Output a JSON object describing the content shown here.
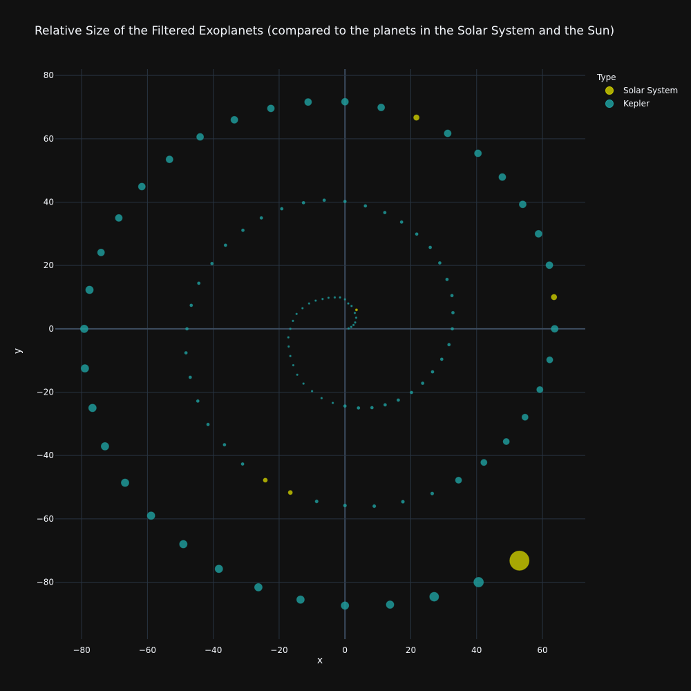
{
  "chart_data": {
    "type": "scatter",
    "title": "Relative Size of the Filtered Exoplanets (compared to the planets in the Solar System and the Sun)",
    "xlabel": "x",
    "ylabel": "y",
    "xlim": [
      -88,
      73
    ],
    "ylim": [
      -98,
      82
    ],
    "xticks": [
      -80,
      -60,
      -40,
      -20,
      0,
      20,
      40,
      60
    ],
    "yticks": [
      -80,
      -60,
      -40,
      -20,
      0,
      20,
      40,
      60,
      80
    ],
    "tick_labels_x": [
      "−80",
      "−60",
      "−40",
      "−20",
      "0",
      "20",
      "40",
      "60"
    ],
    "tick_labels_y": [
      "−80",
      "−60",
      "−40",
      "−20",
      "0",
      "20",
      "40",
      "60",
      "80"
    ],
    "grid": true,
    "legend": {
      "title": "Type",
      "placement": "top-right",
      "entries": [
        "Solar System",
        "Kepler"
      ]
    },
    "series": [
      {
        "name": "Solar System",
        "color": "#c8c800",
        "points": [
          {
            "x": 21.7,
            "y": 66.7,
            "size": 4
          },
          {
            "x": 63.5,
            "y": 10.0,
            "size": 4
          },
          {
            "x": -24.2,
            "y": -47.8,
            "size": 3
          },
          {
            "x": -16.6,
            "y": -51.7,
            "size": 3
          },
          {
            "x": 3.5,
            "y": 6.0,
            "size": 1.5
          },
          {
            "x": 53.0,
            "y": -73.2,
            "size": 14
          }
        ]
      },
      {
        "name": "Kepler",
        "color": "#1f9e9e",
        "points": [
          {
            "x": 0,
            "y": 71.7,
            "size": 5
          },
          {
            "x": 11.0,
            "y": 69.9,
            "size": 5
          },
          {
            "x": 31.2,
            "y": 61.7,
            "size": 5
          },
          {
            "x": 40.4,
            "y": 55.4,
            "size": 5
          },
          {
            "x": 47.8,
            "y": 47.9,
            "size": 5
          },
          {
            "x": 54.0,
            "y": 39.3,
            "size": 5
          },
          {
            "x": 58.8,
            "y": 30.0,
            "size": 5
          },
          {
            "x": 62.1,
            "y": 20.1,
            "size": 5
          },
          {
            "x": 63.7,
            "y": 0,
            "size": 5
          },
          {
            "x": 62.2,
            "y": -9.8,
            "size": 4.5
          },
          {
            "x": 59.2,
            "y": -19.2,
            "size": 4.5
          },
          {
            "x": 54.7,
            "y": -27.9,
            "size": 4.5
          },
          {
            "x": 49.0,
            "y": -35.6,
            "size": 4.5
          },
          {
            "x": 42.2,
            "y": -42.2,
            "size": 4.5
          },
          {
            "x": 34.5,
            "y": -47.8,
            "size": 4.5
          },
          {
            "x": -11.2,
            "y": 71.6,
            "size": 5
          },
          {
            "x": -22.5,
            "y": 69.6,
            "size": 5
          },
          {
            "x": -33.6,
            "y": 66.0,
            "size": 5
          },
          {
            "x": -44.0,
            "y": 60.6,
            "size": 5
          },
          {
            "x": -53.3,
            "y": 53.5,
            "size": 5
          },
          {
            "x": -61.7,
            "y": 44.9,
            "size": 5
          },
          {
            "x": -68.7,
            "y": 35.0,
            "size": 5
          },
          {
            "x": -74.1,
            "y": 24.1,
            "size": 5
          },
          {
            "x": -77.6,
            "y": 12.3,
            "size": 5.5
          },
          {
            "x": -79.2,
            "y": 0,
            "size": 5.5
          },
          {
            "x": -79.0,
            "y": -12.5,
            "size": 5.5
          },
          {
            "x": -76.7,
            "y": -25.0,
            "size": 5.5
          },
          {
            "x": -72.9,
            "y": -37.1,
            "size": 5.5
          },
          {
            "x": -66.8,
            "y": -48.6,
            "size": 5.5
          },
          {
            "x": -58.9,
            "y": -59.0,
            "size": 5.5
          },
          {
            "x": -49.1,
            "y": -68.0,
            "size": 5.5
          },
          {
            "x": -38.3,
            "y": -75.8,
            "size": 5.5
          },
          {
            "x": -26.3,
            "y": -81.6,
            "size": 5.5
          },
          {
            "x": -13.5,
            "y": -85.5,
            "size": 5.5
          },
          {
            "x": 0,
            "y": -87.4,
            "size": 5.5
          },
          {
            "x": 13.7,
            "y": -87.1,
            "size": 5.5
          },
          {
            "x": 27.1,
            "y": -84.6,
            "size": 6.5
          },
          {
            "x": 40.6,
            "y": -80.0,
            "size": 7
          },
          {
            "x": 0,
            "y": 40.2,
            "size": 2
          },
          {
            "x": 6.2,
            "y": 38.8,
            "size": 2
          },
          {
            "x": 12.1,
            "y": 36.7,
            "size": 2
          },
          {
            "x": 17.2,
            "y": 33.7,
            "size": 2
          },
          {
            "x": 21.8,
            "y": 29.9,
            "size": 2
          },
          {
            "x": 25.9,
            "y": 25.7,
            "size": 2
          },
          {
            "x": 28.8,
            "y": 20.8,
            "size": 2
          },
          {
            "x": 31.0,
            "y": 15.6,
            "size": 2
          },
          {
            "x": 32.5,
            "y": 10.5,
            "size": 2
          },
          {
            "x": 32.8,
            "y": 5.1,
            "size": 2
          },
          {
            "x": 32.6,
            "y": 0,
            "size": 2
          },
          {
            "x": 31.6,
            "y": -5.0,
            "size": 2
          },
          {
            "x": 29.4,
            "y": -9.6,
            "size": 2
          },
          {
            "x": 26.6,
            "y": -13.6,
            "size": 2
          },
          {
            "x": 23.6,
            "y": -17.2,
            "size": 2
          },
          {
            "x": 20.2,
            "y": -20.1,
            "size": 2
          },
          {
            "x": 16.2,
            "y": -22.5,
            "size": 2
          },
          {
            "x": 12.2,
            "y": -24.0,
            "size": 2
          },
          {
            "x": 8.2,
            "y": -24.9,
            "size": 2
          },
          {
            "x": 4.1,
            "y": -25.0,
            "size": 2
          },
          {
            "x": 0,
            "y": -24.4,
            "size": 2
          },
          {
            "x": -6.3,
            "y": 40.6,
            "size": 2
          },
          {
            "x": -12.6,
            "y": 39.8,
            "size": 2
          },
          {
            "x": -19.2,
            "y": 37.9,
            "size": 2
          },
          {
            "x": -25.4,
            "y": 35.0,
            "size": 2
          },
          {
            "x": -31.0,
            "y": 31.1,
            "size": 2
          },
          {
            "x": -36.3,
            "y": 26.4,
            "size": 2
          },
          {
            "x": -40.4,
            "y": 20.6,
            "size": 2
          },
          {
            "x": -44.4,
            "y": 14.4,
            "size": 2
          },
          {
            "x": -46.7,
            "y": 7.4,
            "size": 2
          },
          {
            "x": -48.0,
            "y": 0,
            "size": 2
          },
          {
            "x": -48.3,
            "y": -7.6,
            "size": 2
          },
          {
            "x": -47.0,
            "y": -15.3,
            "size": 2
          },
          {
            "x": -44.7,
            "y": -22.8,
            "size": 2
          },
          {
            "x": -41.6,
            "y": -30.2,
            "size": 2
          },
          {
            "x": -36.6,
            "y": -36.6,
            "size": 2
          },
          {
            "x": -31.1,
            "y": -42.7,
            "size": 2
          },
          {
            "x": -8.6,
            "y": -54.5,
            "size": 2.2
          },
          {
            "x": 0,
            "y": -55.8,
            "size": 2.2
          },
          {
            "x": 8.9,
            "y": -56.0,
            "size": 2.2
          },
          {
            "x": 17.6,
            "y": -54.6,
            "size": 2.2
          },
          {
            "x": 26.5,
            "y": -52.0,
            "size": 2.2
          },
          {
            "x": 0,
            "y": 9.3,
            "size": 1.2
          },
          {
            "x": 1.0,
            "y": 8.0,
            "size": 1.2
          },
          {
            "x": 2.0,
            "y": 7.2,
            "size": 1.2
          },
          {
            "x": 3.0,
            "y": 5.0,
            "size": 1.2
          },
          {
            "x": 3.4,
            "y": 3.5,
            "size": 1.2
          },
          {
            "x": 3.1,
            "y": 2.0,
            "size": 1.2
          },
          {
            "x": 2.6,
            "y": 1.2,
            "size": 1.2
          },
          {
            "x": 1.9,
            "y": 0.6,
            "size": 1.2
          },
          {
            "x": 1.1,
            "y": 0.1,
            "size": 1.2
          },
          {
            "x": -1.5,
            "y": 9.9,
            "size": 1.2
          },
          {
            "x": -3.1,
            "y": 9.9,
            "size": 1.2
          },
          {
            "x": -5.0,
            "y": 9.8,
            "size": 1.2
          },
          {
            "x": -6.8,
            "y": 9.4,
            "size": 1.2
          },
          {
            "x": -8.9,
            "y": 8.9,
            "size": 1.2
          },
          {
            "x": -10.9,
            "y": 8.0,
            "size": 1.2
          },
          {
            "x": -12.9,
            "y": 6.5,
            "size": 1.2
          },
          {
            "x": -14.7,
            "y": 4.7,
            "size": 1.2
          },
          {
            "x": -15.8,
            "y": 2.5,
            "size": 1.2
          },
          {
            "x": -16.6,
            "y": 0,
            "size": 1.2
          },
          {
            "x": -17.2,
            "y": -2.7,
            "size": 1.2
          },
          {
            "x": -17.1,
            "y": -5.6,
            "size": 1.2
          },
          {
            "x": -16.6,
            "y": -8.6,
            "size": 1.2
          },
          {
            "x": -15.7,
            "y": -11.5,
            "size": 1.2
          },
          {
            "x": -14.5,
            "y": -14.5,
            "size": 1.2
          },
          {
            "x": -12.6,
            "y": -17.3,
            "size": 1.2
          },
          {
            "x": -10.0,
            "y": -19.7,
            "size": 1.2
          },
          {
            "x": -7.1,
            "y": -21.9,
            "size": 1.2
          },
          {
            "x": -3.7,
            "y": -23.4,
            "size": 1.2
          }
        ]
      }
    ]
  }
}
